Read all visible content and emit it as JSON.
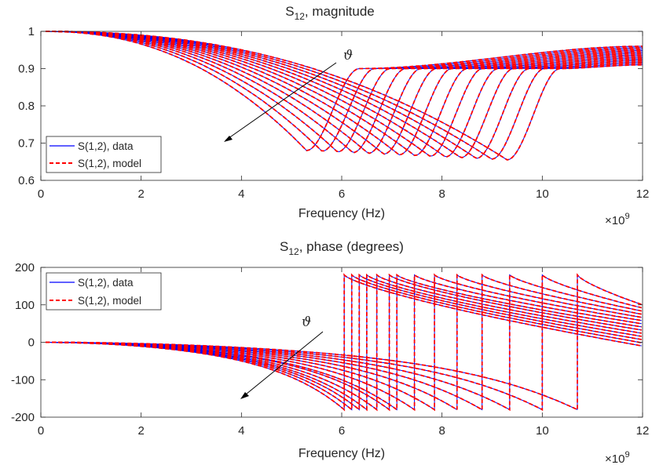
{
  "chart_data": [
    {
      "type": "line",
      "title_main": "S",
      "title_sub": "12",
      "title_rest": ", magnitude",
      "xlabel": "Frequency (Hz)",
      "x_exponent_base": "×10",
      "x_exponent_power": "9",
      "xlim": [
        0,
        12
      ],
      "ylim": [
        0.6,
        1.0
      ],
      "xticks": [
        "0",
        "2",
        "4",
        "6",
        "8",
        "10",
        "12"
      ],
      "yticks": [
        "0.6",
        "0.7",
        "0.8",
        "0.9",
        "1"
      ],
      "annotation": "ϑ",
      "legend": {
        "location": "bottom-left",
        "entries": [
          "S(1,2), data",
          "S(1,2), model"
        ]
      },
      "curve_params": {
        "count": 14,
        "freq_range_ghz": [
          0.1,
          12
        ],
        "dip_center_ghz_first": 9.3,
        "dip_center_ghz_last": 5.3,
        "dip_min_first": 0.655,
        "dip_min_last": 0.68,
        "end_value_first": 0.91,
        "end_value_last": 0.96
      },
      "series": [
        {
          "name": "S(1,2), data",
          "color": "#0000ff",
          "style": "solid"
        },
        {
          "name": "S(1,2), model",
          "color": "#ff0000",
          "style": "dashed"
        }
      ]
    },
    {
      "type": "line",
      "title_main": "S",
      "title_sub": "12",
      "title_rest": ", phase (degrees)",
      "xlabel": "Frequency (Hz)",
      "x_exponent_base": "×10",
      "x_exponent_power": "9",
      "xlim": [
        0,
        12
      ],
      "ylim": [
        -200,
        200
      ],
      "xticks": [
        "0",
        "2",
        "4",
        "6",
        "8",
        "10",
        "12"
      ],
      "yticks": [
        "-200",
        "-100",
        "0",
        "100",
        "200"
      ],
      "annotation": "ϑ",
      "legend": {
        "location": "top-left",
        "entries": [
          "S(1,2), data",
          "S(1,2), model"
        ]
      },
      "curve_params": {
        "count": 14,
        "wrap_freq_ghz": [
          10.7,
          10.0,
          9.35,
          8.8,
          8.3,
          7.85,
          7.45,
          7.1,
          6.95,
          6.7,
          6.5,
          6.35,
          6.2,
          6.05
        ],
        "end_value_deg_first": 100,
        "end_value_deg_last": -10
      },
      "series": [
        {
          "name": "S(1,2), data",
          "color": "#0000ff",
          "style": "solid"
        },
        {
          "name": "S(1,2), model",
          "color": "#ff0000",
          "style": "dashed"
        }
      ]
    }
  ]
}
